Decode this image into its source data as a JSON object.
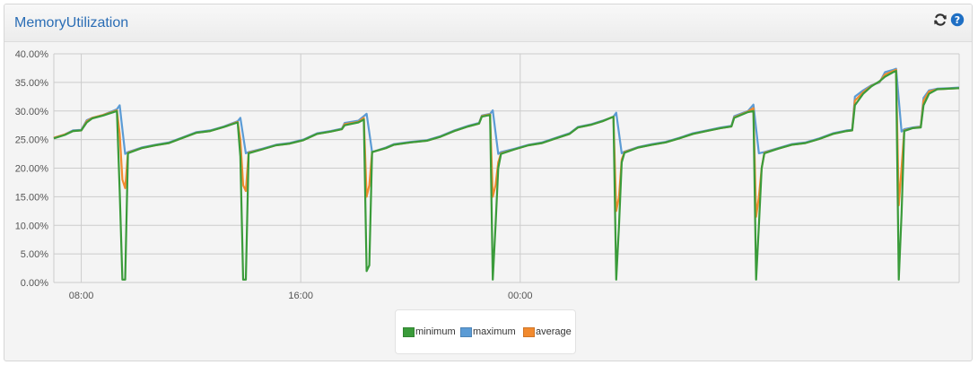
{
  "panel": {
    "title": "MemoryUtilization",
    "icons": [
      "refresh-icon",
      "help-icon"
    ]
  },
  "colors": {
    "minimum": "#3a9b3a",
    "maximum": "#5b9bd5",
    "average": "#f28a2e",
    "grid": "#cccccc",
    "title": "#2a6db5"
  },
  "chart_data": {
    "type": "line",
    "title": "",
    "xlabel": "",
    "ylabel": "",
    "ylim": [
      0,
      40
    ],
    "y_ticks": [
      "0.00%",
      "5.00%",
      "10.00%",
      "15.00%",
      "20.00%",
      "25.00%",
      "30.00%",
      "35.00%",
      "40.00%"
    ],
    "y_tick_values": [
      0,
      5,
      10,
      15,
      20,
      25,
      30,
      35,
      40
    ],
    "x_ticks": [
      "08:00",
      "16:00",
      "00:00"
    ],
    "x_tick_hours": [
      8,
      16,
      24
    ],
    "x_range_hours": [
      7.0,
      30.9
    ],
    "grid": true,
    "legend_position": "bottom-center",
    "series": [
      {
        "name": "minimum",
        "points": [
          [
            7.0,
            25.2
          ],
          [
            7.4,
            25.8
          ],
          [
            7.7,
            26.5
          ],
          [
            8.0,
            26.6
          ],
          [
            8.2,
            28.0
          ],
          [
            8.4,
            28.7
          ],
          [
            8.8,
            29.2
          ],
          [
            9.3,
            30.0
          ],
          [
            9.4,
            16.0
          ],
          [
            9.5,
            0.5
          ],
          [
            9.6,
            0.5
          ],
          [
            9.7,
            22.6
          ],
          [
            10.2,
            23.5
          ],
          [
            10.7,
            24.0
          ],
          [
            11.2,
            24.4
          ],
          [
            11.7,
            25.3
          ],
          [
            12.2,
            26.2
          ],
          [
            12.7,
            26.5
          ],
          [
            13.2,
            27.2
          ],
          [
            13.7,
            28.0
          ],
          [
            13.8,
            22.0
          ],
          [
            13.9,
            0.5
          ],
          [
            14.0,
            0.5
          ],
          [
            14.1,
            22.6
          ],
          [
            14.6,
            23.3
          ],
          [
            15.1,
            24.0
          ],
          [
            15.6,
            24.3
          ],
          [
            16.1,
            24.9
          ],
          [
            16.6,
            26.0
          ],
          [
            17.1,
            26.4
          ],
          [
            17.5,
            26.8
          ],
          [
            17.6,
            27.5
          ],
          [
            18.1,
            28.0
          ],
          [
            18.3,
            28.5
          ],
          [
            18.4,
            2.0
          ],
          [
            18.5,
            3.0
          ],
          [
            18.6,
            22.8
          ],
          [
            19.1,
            23.5
          ],
          [
            19.4,
            24.1
          ],
          [
            20.0,
            24.5
          ],
          [
            20.6,
            24.8
          ],
          [
            21.1,
            25.5
          ],
          [
            21.6,
            26.5
          ],
          [
            22.1,
            27.3
          ],
          [
            22.5,
            27.8
          ],
          [
            22.6,
            29.0
          ],
          [
            22.9,
            29.3
          ],
          [
            23.0,
            0.5
          ],
          [
            23.1,
            10.0
          ],
          [
            23.2,
            20.0
          ],
          [
            23.3,
            22.5
          ],
          [
            23.8,
            23.3
          ],
          [
            24.3,
            24.0
          ],
          [
            24.8,
            24.4
          ],
          [
            25.3,
            25.2
          ],
          [
            25.8,
            26.0
          ],
          [
            26.1,
            27.1
          ],
          [
            26.6,
            27.6
          ],
          [
            27.0,
            28.2
          ],
          [
            27.4,
            29.0
          ],
          [
            27.5,
            0.5
          ],
          [
            27.6,
            10.0
          ],
          [
            27.7,
            21.0
          ],
          [
            27.8,
            22.7
          ],
          [
            28.3,
            23.6
          ],
          [
            28.8,
            24.1
          ],
          [
            29.3,
            24.5
          ],
          [
            29.8,
            25.2
          ],
          [
            30.3,
            26.0
          ],
          [
            30.8,
            26.5
          ],
          [
            31.3,
            27.0
          ],
          [
            31.7,
            27.3
          ],
          [
            31.8,
            28.8
          ],
          [
            32.3,
            29.8
          ],
          [
            32.5,
            30.0
          ],
          [
            32.6,
            0.5
          ],
          [
            32.7,
            10.0
          ],
          [
            32.8,
            20.0
          ],
          [
            32.9,
            22.6
          ],
          [
            33.4,
            23.4
          ],
          [
            33.9,
            24.1
          ],
          [
            34.4,
            24.4
          ],
          [
            34.9,
            25.1
          ],
          [
            35.4,
            26.0
          ],
          [
            35.9,
            26.5
          ],
          [
            36.1,
            26.6
          ],
          [
            36.2,
            31.0
          ],
          [
            36.5,
            33.0
          ],
          [
            36.8,
            34.3
          ],
          [
            37.1,
            35.2
          ],
          [
            37.3,
            36.0
          ],
          [
            37.6,
            36.8
          ],
          [
            37.7,
            37.0
          ],
          [
            37.8,
            0.5
          ],
          [
            37.9,
            12.0
          ],
          [
            38.0,
            26.5
          ],
          [
            38.3,
            27.0
          ],
          [
            38.6,
            27.1
          ],
          [
            38.7,
            31.0
          ],
          [
            38.9,
            33.0
          ],
          [
            39.2,
            33.8
          ],
          [
            39.6,
            33.9
          ],
          [
            40.0,
            34.0
          ]
        ]
      },
      {
        "name": "maximum",
        "points": [
          [
            7.0,
            25.3
          ],
          [
            7.4,
            25.9
          ],
          [
            7.7,
            26.6
          ],
          [
            8.0,
            26.7
          ],
          [
            8.2,
            28.4
          ],
          [
            8.4,
            28.8
          ],
          [
            8.8,
            29.3
          ],
          [
            9.3,
            30.3
          ],
          [
            9.4,
            31.0
          ],
          [
            9.6,
            22.5
          ],
          [
            9.7,
            22.8
          ],
          [
            10.2,
            23.6
          ],
          [
            10.7,
            24.1
          ],
          [
            11.2,
            24.5
          ],
          [
            11.7,
            25.4
          ],
          [
            12.2,
            26.3
          ],
          [
            12.7,
            26.6
          ],
          [
            13.2,
            27.3
          ],
          [
            13.7,
            28.2
          ],
          [
            13.8,
            28.8
          ],
          [
            14.0,
            22.6
          ],
          [
            14.1,
            22.8
          ],
          [
            14.6,
            23.4
          ],
          [
            15.1,
            24.1
          ],
          [
            15.6,
            24.4
          ],
          [
            16.1,
            25.0
          ],
          [
            16.6,
            26.1
          ],
          [
            17.1,
            26.5
          ],
          [
            17.5,
            26.9
          ],
          [
            17.6,
            27.9
          ],
          [
            18.1,
            28.3
          ],
          [
            18.4,
            29.5
          ],
          [
            18.6,
            22.8
          ],
          [
            19.1,
            23.6
          ],
          [
            19.4,
            24.2
          ],
          [
            20.0,
            24.6
          ],
          [
            20.6,
            24.9
          ],
          [
            21.1,
            25.6
          ],
          [
            21.6,
            26.6
          ],
          [
            22.1,
            27.4
          ],
          [
            22.5,
            27.9
          ],
          [
            22.6,
            29.2
          ],
          [
            22.9,
            29.5
          ],
          [
            23.0,
            30.1
          ],
          [
            23.2,
            22.5
          ],
          [
            23.3,
            22.8
          ],
          [
            23.8,
            23.4
          ],
          [
            24.3,
            24.1
          ],
          [
            24.8,
            24.5
          ],
          [
            25.3,
            25.3
          ],
          [
            25.8,
            26.1
          ],
          [
            26.1,
            27.2
          ],
          [
            26.6,
            27.7
          ],
          [
            27.0,
            28.3
          ],
          [
            27.4,
            29.0
          ],
          [
            27.5,
            29.7
          ],
          [
            27.7,
            22.6
          ],
          [
            27.8,
            22.9
          ],
          [
            28.3,
            23.7
          ],
          [
            28.8,
            24.2
          ],
          [
            29.3,
            24.6
          ],
          [
            29.8,
            25.3
          ],
          [
            30.3,
            26.1
          ],
          [
            30.8,
            26.6
          ],
          [
            31.3,
            27.1
          ],
          [
            31.7,
            27.4
          ],
          [
            31.8,
            29.1
          ],
          [
            32.3,
            30.0
          ],
          [
            32.5,
            31.1
          ],
          [
            32.7,
            22.6
          ],
          [
            32.9,
            22.8
          ],
          [
            33.4,
            23.5
          ],
          [
            33.9,
            24.2
          ],
          [
            34.4,
            24.5
          ],
          [
            34.9,
            25.2
          ],
          [
            35.4,
            26.1
          ],
          [
            35.9,
            26.6
          ],
          [
            36.1,
            26.7
          ],
          [
            36.2,
            32.5
          ],
          [
            36.5,
            33.6
          ],
          [
            36.8,
            34.5
          ],
          [
            37.1,
            35.0
          ],
          [
            37.3,
            36.8
          ],
          [
            37.6,
            37.2
          ],
          [
            37.7,
            37.4
          ],
          [
            37.9,
            26.4
          ],
          [
            38.0,
            26.8
          ],
          [
            38.3,
            27.1
          ],
          [
            38.6,
            27.3
          ],
          [
            38.7,
            32.3
          ],
          [
            38.9,
            33.6
          ],
          [
            39.2,
            33.9
          ],
          [
            39.6,
            34.0
          ],
          [
            40.0,
            34.1
          ]
        ]
      },
      {
        "name": "average",
        "points": [
          [
            7.0,
            25.3
          ],
          [
            7.4,
            25.9
          ],
          [
            7.7,
            26.5
          ],
          [
            8.0,
            26.6
          ],
          [
            8.2,
            28.2
          ],
          [
            8.4,
            28.8
          ],
          [
            8.8,
            29.3
          ],
          [
            9.3,
            30.1
          ],
          [
            9.4,
            26.0
          ],
          [
            9.5,
            18.0
          ],
          [
            9.6,
            16.5
          ],
          [
            9.7,
            22.7
          ],
          [
            10.2,
            23.5
          ],
          [
            10.7,
            24.0
          ],
          [
            11.2,
            24.4
          ],
          [
            11.7,
            25.3
          ],
          [
            12.2,
            26.2
          ],
          [
            12.7,
            26.5
          ],
          [
            13.2,
            27.2
          ],
          [
            13.7,
            28.1
          ],
          [
            13.8,
            25.0
          ],
          [
            13.9,
            17.0
          ],
          [
            14.0,
            16.0
          ],
          [
            14.1,
            22.7
          ],
          [
            14.6,
            23.3
          ],
          [
            15.1,
            24.0
          ],
          [
            15.6,
            24.3
          ],
          [
            16.1,
            24.9
          ],
          [
            16.6,
            26.0
          ],
          [
            17.1,
            26.4
          ],
          [
            17.5,
            26.8
          ],
          [
            17.6,
            27.7
          ],
          [
            18.1,
            28.1
          ],
          [
            18.3,
            28.8
          ],
          [
            18.4,
            15.0
          ],
          [
            18.5,
            17.0
          ],
          [
            18.6,
            22.8
          ],
          [
            19.1,
            23.5
          ],
          [
            19.4,
            24.1
          ],
          [
            20.0,
            24.5
          ],
          [
            20.6,
            24.8
          ],
          [
            21.1,
            25.5
          ],
          [
            21.6,
            26.5
          ],
          [
            22.1,
            27.3
          ],
          [
            22.5,
            27.8
          ],
          [
            22.6,
            29.1
          ],
          [
            22.9,
            29.4
          ],
          [
            23.0,
            15.0
          ],
          [
            23.1,
            17.0
          ],
          [
            23.2,
            21.0
          ],
          [
            23.3,
            22.6
          ],
          [
            23.8,
            23.3
          ],
          [
            24.3,
            24.0
          ],
          [
            24.8,
            24.4
          ],
          [
            25.3,
            25.2
          ],
          [
            25.8,
            26.0
          ],
          [
            26.1,
            27.1
          ],
          [
            26.6,
            27.6
          ],
          [
            27.0,
            28.2
          ],
          [
            27.4,
            29.0
          ],
          [
            27.5,
            12.5
          ],
          [
            27.6,
            15.0
          ],
          [
            27.7,
            21.5
          ],
          [
            27.8,
            22.8
          ],
          [
            28.3,
            23.6
          ],
          [
            28.8,
            24.1
          ],
          [
            29.3,
            24.5
          ],
          [
            29.8,
            25.2
          ],
          [
            30.3,
            26.0
          ],
          [
            30.8,
            26.5
          ],
          [
            31.3,
            27.0
          ],
          [
            31.7,
            27.3
          ],
          [
            31.8,
            28.9
          ],
          [
            32.3,
            29.9
          ],
          [
            32.5,
            30.5
          ],
          [
            32.6,
            11.5
          ],
          [
            32.7,
            15.0
          ],
          [
            32.8,
            20.0
          ],
          [
            32.9,
            22.7
          ],
          [
            33.4,
            23.4
          ],
          [
            33.9,
            24.1
          ],
          [
            34.4,
            24.4
          ],
          [
            34.9,
            25.1
          ],
          [
            35.4,
            26.0
          ],
          [
            35.9,
            26.5
          ],
          [
            36.1,
            26.6
          ],
          [
            36.2,
            31.8
          ],
          [
            36.5,
            33.3
          ],
          [
            36.8,
            34.4
          ],
          [
            37.1,
            35.1
          ],
          [
            37.3,
            36.4
          ],
          [
            37.6,
            37.0
          ],
          [
            37.7,
            37.2
          ],
          [
            37.8,
            13.5
          ],
          [
            37.9,
            20.0
          ],
          [
            38.0,
            26.6
          ],
          [
            38.3,
            27.0
          ],
          [
            38.6,
            27.2
          ],
          [
            38.7,
            31.8
          ],
          [
            38.9,
            33.4
          ],
          [
            39.2,
            33.8
          ],
          [
            39.6,
            33.9
          ],
          [
            40.0,
            34.0
          ]
        ]
      }
    ],
    "legend": [
      "minimum",
      "maximum",
      "average"
    ]
  }
}
